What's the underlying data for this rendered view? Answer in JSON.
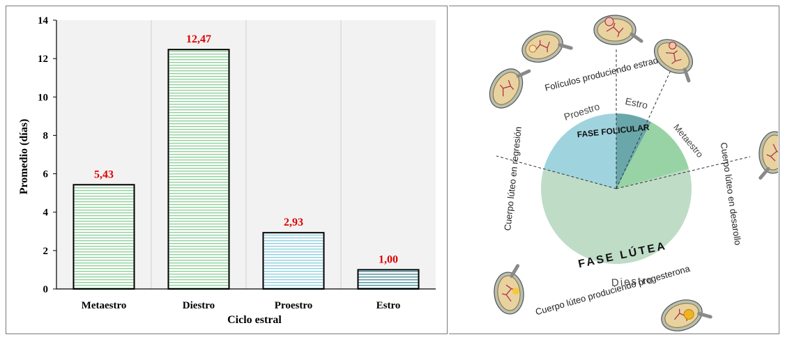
{
  "colors": {
    "bar_green": "#8fd19a",
    "bar_blue": "#8ecfe0",
    "bar_teal": "#5e9aa6",
    "label_red": "#e00000",
    "pie_lutea": "#bfdcc7",
    "pie_foliculo": "#9fd3dd",
    "pie_estro": "#6aa7ab",
    "pie_meta": "#98d3a5"
  },
  "chart_data": {
    "type": "bar",
    "categories": [
      "Metaestro",
      "Diestro",
      "Proestro",
      "Estro"
    ],
    "values": [
      5.43,
      12.47,
      2.93,
      1.0
    ],
    "value_labels": [
      "5,43",
      "12,47",
      "2,93",
      "1,00"
    ],
    "xlabel": "Ciclo estral",
    "ylabel": "Promedio (días)",
    "ylim": [
      0,
      14
    ],
    "yticks": [
      0,
      2,
      4,
      6,
      8,
      10,
      12,
      14
    ],
    "grid": "vertical"
  },
  "diagram": {
    "phase_folicular": "FASE FOLICULAR",
    "phase_lutea": "FASE LÚTEA",
    "stages": {
      "proestro": "Proestro",
      "estro": "Estro",
      "metaestro": "Metaestro",
      "diestro": "Diestro"
    },
    "outer": {
      "foliculos": "Folículos produciendo estradiol",
      "regresion": "Cuerpo lúteo en regresión",
      "desarrollo": "Cuerpo lúteo en desarollo",
      "progesterona": "Cuerpo lúteo produciendo progesterona"
    },
    "ovary_icons": [
      "ovary-icon",
      "ovary-icon",
      "ovary-icon",
      "ovary-icon",
      "ovary-icon",
      "ovary-icon",
      "ovary-icon",
      "ovary-icon"
    ]
  }
}
